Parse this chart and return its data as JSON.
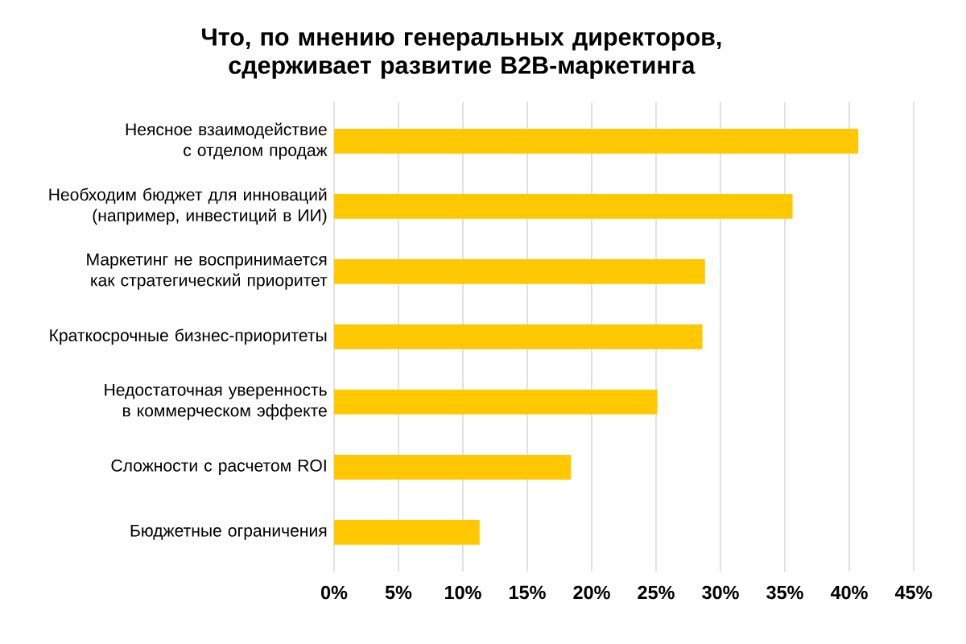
{
  "chart_data": {
    "type": "bar",
    "orientation": "horizontal",
    "title": "Что, по мнению генеральных директоров, сдерживает развитие B2B-маркетинга",
    "categories": [
      "Неясное взаимодействие с отделом продаж",
      "Необходим бюджет для инноваций (например, инвестиций в ИИ)",
      "Маркетинг не воспринимается как стратегический приоритет",
      "Краткосрочные бизнес-приоритеты",
      "Недостаточная уверенность в коммерческом эффекте",
      "Сложности с расчетом ROI",
      "Бюджетные ограничения"
    ],
    "values": [
      40.7,
      35.6,
      28.8,
      28.6,
      25.1,
      18.4,
      11.3
    ],
    "color": "#ffc800",
    "xlim": [
      0,
      45
    ],
    "xticks": [
      {
        "value": 0,
        "label": "0%"
      },
      {
        "value": 5,
        "label": "5%"
      },
      {
        "value": 10,
        "label": "10%"
      },
      {
        "value": 15,
        "label": "15%"
      },
      {
        "value": 20,
        "label": "20%"
      },
      {
        "value": 25,
        "label": "25%"
      },
      {
        "value": 30,
        "label": "30%"
      },
      {
        "value": 35,
        "label": "35%"
      },
      {
        "value": 40,
        "label": "40%"
      },
      {
        "value": 45,
        "label": "45%"
      }
    ],
    "grid": "x"
  }
}
